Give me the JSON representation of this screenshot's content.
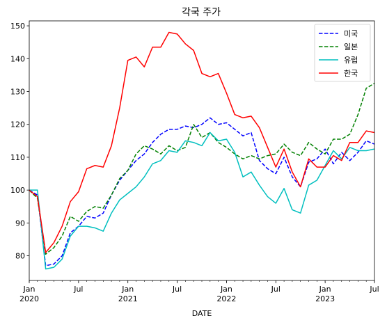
{
  "chart_data": {
    "type": "line",
    "title": "각국 주가",
    "xlabel": "DATE",
    "ylabel": "",
    "x": [
      "2020-01",
      "2020-02",
      "2020-03",
      "2020-04",
      "2020-05",
      "2020-06",
      "2020-07",
      "2020-08",
      "2020-09",
      "2020-10",
      "2020-11",
      "2020-12",
      "2021-01",
      "2021-02",
      "2021-03",
      "2021-04",
      "2021-05",
      "2021-06",
      "2021-07",
      "2021-08",
      "2021-09",
      "2021-10",
      "2021-11",
      "2021-12",
      "2022-01",
      "2022-02",
      "2022-03",
      "2022-04",
      "2022-05",
      "2022-06",
      "2022-07",
      "2022-08",
      "2022-09",
      "2022-10",
      "2022-11",
      "2022-12",
      "2023-01",
      "2023-02",
      "2023-03",
      "2023-04",
      "2023-05",
      "2023-06",
      "2023-07"
    ],
    "ylim": [
      72.5,
      151.5
    ],
    "yticks": [
      80,
      90,
      100,
      110,
      120,
      130,
      140,
      150
    ],
    "xticks": [
      {
        "x": "2020-01",
        "label": "Jan",
        "sublabel": "2020"
      },
      {
        "x": "2020-07",
        "label": "Jul",
        "sublabel": ""
      },
      {
        "x": "2021-01",
        "label": "Jan",
        "sublabel": "2021"
      },
      {
        "x": "2021-07",
        "label": "Jul",
        "sublabel": ""
      },
      {
        "x": "2022-01",
        "label": "Jan",
        "sublabel": "2022"
      },
      {
        "x": "2022-07",
        "label": "Jul",
        "sublabel": ""
      },
      {
        "x": "2023-01",
        "label": "Jan",
        "sublabel": "2023"
      },
      {
        "x": "2023-07",
        "label": "Jul",
        "sublabel": ""
      }
    ],
    "grid": false,
    "legend_position": "top-right",
    "series": [
      {
        "name": "미국",
        "color": "#0000ff",
        "dash": "dashed",
        "values": [
          100,
          98.5,
          77,
          77.5,
          80,
          87,
          89,
          92,
          91.5,
          93,
          98.5,
          103,
          106,
          109,
          111,
          114.5,
          117,
          118.5,
          118.5,
          119.5,
          119,
          120,
          122,
          120,
          120.5,
          118.5,
          116.5,
          117.5,
          109,
          106.5,
          105,
          110,
          104,
          101,
          108.5,
          109.5,
          112.5,
          108,
          111.5,
          109,
          111.5,
          115,
          114
        ]
      },
      {
        "name": "일본",
        "color": "#008000",
        "dash": "dashed",
        "values": [
          100,
          97.5,
          80.5,
          82.5,
          86,
          92,
          90.5,
          93.5,
          95,
          94.5,
          98.5,
          103.5,
          106,
          111,
          113.5,
          112.5,
          111,
          113.5,
          112,
          113,
          120,
          116,
          117.5,
          114.5,
          113,
          111,
          109.5,
          110.5,
          109.5,
          110.5,
          111,
          114,
          111.5,
          110.5,
          114.5,
          112.5,
          111,
          115.5,
          115.5,
          117,
          123,
          131,
          132.5
        ]
      },
      {
        "name": "유럽",
        "color": "#00bfbf",
        "dash": "solid",
        "values": [
          100,
          100,
          76,
          76.5,
          79,
          86,
          89,
          89,
          88.5,
          87.5,
          93,
          97,
          99,
          101,
          104,
          108,
          109,
          112,
          111.5,
          115,
          114.5,
          113.5,
          117.5,
          115,
          115.5,
          111.5,
          104,
          105.5,
          101.5,
          98,
          96,
          100.5,
          94,
          93,
          101.5,
          103,
          107.5,
          112,
          109.5,
          113,
          112,
          112,
          112.5
        ]
      },
      {
        "name": "한국",
        "color": "#ff0000",
        "dash": "solid",
        "values": [
          100,
          98,
          81,
          84,
          89,
          96.5,
          99.5,
          106.5,
          107.5,
          107,
          113.5,
          125,
          139.5,
          140.5,
          137.5,
          143.5,
          143.5,
          148,
          147.5,
          144.5,
          142.5,
          135.5,
          134.5,
          135.5,
          129.5,
          123,
          122,
          122.5,
          119,
          113,
          107,
          112.5,
          105.5,
          101,
          109.5,
          107,
          107,
          110.5,
          109,
          114.5,
          114.5,
          118,
          117.5
        ]
      }
    ]
  }
}
